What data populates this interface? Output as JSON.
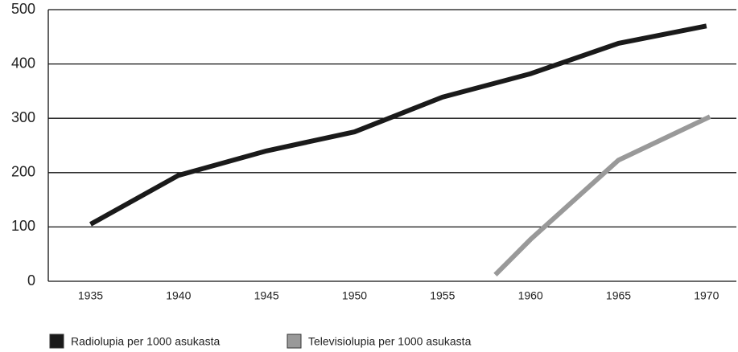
{
  "chart_data": {
    "type": "line",
    "series": [
      {
        "name": "Radiolupia per 1000 asukasta",
        "color": "#1a1a1a",
        "x": [
          1935,
          1940,
          1945,
          1950,
          1955,
          1960,
          1965,
          1970
        ],
        "values": [
          105,
          195,
          240,
          275,
          339,
          382,
          438,
          470
        ]
      },
      {
        "name": "Televisiolupia per 1000 asukasta",
        "color": "#999999",
        "x": [
          1958,
          1960,
          1965,
          1970.2
        ],
        "values": [
          12,
          77,
          223,
          303
        ]
      }
    ],
    "xlim": [
      1932.6,
      1971.7
    ],
    "xticks": [
      1935,
      1940,
      1945,
      1950,
      1955,
      1960,
      1965,
      1970
    ],
    "ylim": [
      0,
      500
    ],
    "yticks": [
      0,
      100,
      200,
      300,
      400,
      500
    ],
    "grid": true
  }
}
